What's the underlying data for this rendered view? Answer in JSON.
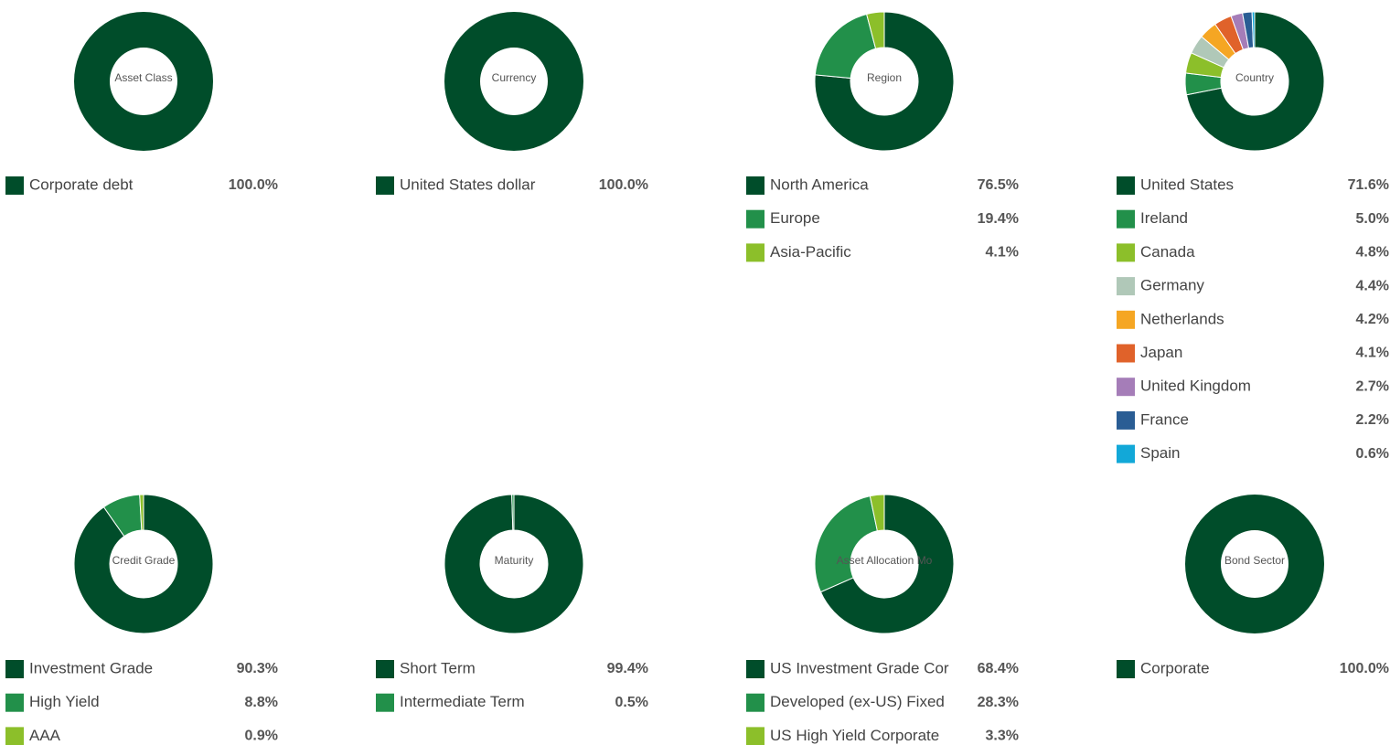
{
  "chart_data": [
    {
      "type": "donut",
      "title": "Asset Class",
      "categories": [
        "Corporate debt"
      ],
      "values": [
        100.0
      ],
      "value_labels": [
        "100.0%"
      ],
      "colors": [
        "#004d2a"
      ]
    },
    {
      "type": "donut",
      "title": "Currency",
      "categories": [
        "United States dollar"
      ],
      "values": [
        100.0
      ],
      "value_labels": [
        "100.0%"
      ],
      "colors": [
        "#004d2a"
      ]
    },
    {
      "type": "donut",
      "title": "Region",
      "categories": [
        "North America",
        "Europe",
        "Asia-Pacific"
      ],
      "values": [
        76.5,
        19.4,
        4.1
      ],
      "value_labels": [
        "76.5%",
        "19.4%",
        "4.1%"
      ],
      "colors": [
        "#004d2a",
        "#22904a",
        "#8cbf2a"
      ]
    },
    {
      "type": "donut",
      "title": "Country",
      "categories": [
        "United States",
        "Ireland",
        "Canada",
        "Germany",
        "Netherlands",
        "Japan",
        "United Kingdom",
        "France",
        "Spain"
      ],
      "values": [
        71.6,
        5.0,
        4.8,
        4.4,
        4.2,
        4.1,
        2.7,
        2.2,
        0.6
      ],
      "value_labels": [
        "71.6%",
        "5.0%",
        "4.8%",
        "4.4%",
        "4.2%",
        "4.1%",
        "2.7%",
        "2.2%",
        "0.6%"
      ],
      "colors": [
        "#004d2a",
        "#22904a",
        "#8cbf2a",
        "#b0c8b8",
        "#f5a623",
        "#e0622a",
        "#a57db8",
        "#2a5d94",
        "#12a8d8"
      ]
    },
    {
      "type": "donut",
      "title": "Credit Grade",
      "categories": [
        "Investment Grade",
        "High Yield",
        "AAA"
      ],
      "values": [
        90.3,
        8.8,
        0.9
      ],
      "value_labels": [
        "90.3%",
        "8.8%",
        "0.9%"
      ],
      "colors": [
        "#004d2a",
        "#22904a",
        "#8cbf2a"
      ]
    },
    {
      "type": "donut",
      "title": "Maturity",
      "categories": [
        "Short Term",
        "Intermediate Term"
      ],
      "values": [
        99.4,
        0.5
      ],
      "value_labels": [
        "99.4%",
        "0.5%"
      ],
      "colors": [
        "#004d2a",
        "#22904a"
      ]
    },
    {
      "type": "donut",
      "title": "Asset Allocation Mo",
      "categories": [
        "US Investment Grade Cor",
        "Developed (ex-US) Fixed",
        "US High Yield Corporate"
      ],
      "values": [
        68.4,
        28.3,
        3.3
      ],
      "value_labels": [
        "68.4%",
        "28.3%",
        "3.3%"
      ],
      "colors": [
        "#004d2a",
        "#22904a",
        "#8cbf2a"
      ]
    },
    {
      "type": "donut",
      "title": "Bond Sector",
      "categories": [
        "Corporate"
      ],
      "values": [
        100.0
      ],
      "value_labels": [
        "100.0%"
      ],
      "colors": [
        "#004d2a"
      ]
    }
  ]
}
